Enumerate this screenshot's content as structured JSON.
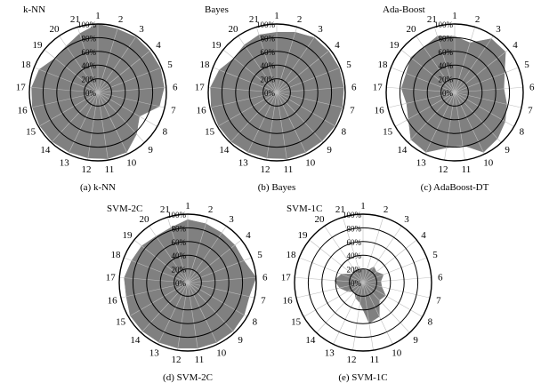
{
  "figure": {
    "panels": [
      {
        "id": "knn",
        "title": "k-NN",
        "caption": "(a) k-NN"
      },
      {
        "id": "bayes",
        "title": "Bayes",
        "caption": "(b) Bayes"
      },
      {
        "id": "ada",
        "title": "Ada-Boost",
        "caption": "(c) AdaBoost-DT"
      },
      {
        "id": "svm2",
        "title": "SVM-2C",
        "caption": "(d) SVM-2C"
      },
      {
        "id": "svm1",
        "title": "SVM-1C",
        "caption": "(e) SVM-1C"
      }
    ]
  },
  "chart_data": [
    {
      "type": "radar",
      "title": "k-NN",
      "categories": [
        "1",
        "2",
        "3",
        "4",
        "5",
        "6",
        "7",
        "8",
        "9",
        "10",
        "11",
        "12",
        "13",
        "14",
        "15",
        "16",
        "17",
        "18",
        "19",
        "20",
        "21"
      ],
      "ticks": [
        "0%",
        "20%",
        "40%",
        "60%",
        "80%",
        "100%"
      ],
      "rlim": [
        0,
        100
      ],
      "grid": true,
      "series": [
        {
          "values": [
            100,
            97,
            98,
            97,
            98,
            97,
            92,
            70,
            83,
            97,
            98,
            97,
            97,
            98,
            98,
            98,
            97,
            92,
            80,
            82,
            90
          ]
        }
      ]
    },
    {
      "type": "radar",
      "title": "Bayes",
      "categories": [
        "1",
        "2",
        "3",
        "4",
        "5",
        "6",
        "7",
        "8",
        "9",
        "10",
        "11",
        "12",
        "13",
        "14",
        "15",
        "16",
        "17",
        "18",
        "19",
        "20",
        "21"
      ],
      "ticks": [
        "0%",
        "20%",
        "40%",
        "60%",
        "80%",
        "100%"
      ],
      "rlim": [
        0,
        100
      ],
      "grid": true,
      "series": [
        {
          "values": [
            88,
            92,
            97,
            97,
            98,
            98,
            98,
            98,
            97,
            97,
            98,
            97,
            97,
            98,
            98,
            98,
            97,
            90,
            80,
            84,
            88
          ]
        }
      ]
    },
    {
      "type": "radar",
      "title": "Ada-Boost",
      "categories": [
        "1",
        "2",
        "3",
        "4",
        "5",
        "6",
        "7",
        "8",
        "9",
        "10",
        "11",
        "12",
        "13",
        "14",
        "15",
        "16",
        "17",
        "18",
        "19",
        "20",
        "21"
      ],
      "ticks": [
        "0%",
        "20%",
        "40%",
        "60%",
        "80%",
        "100%"
      ],
      "rlim": [
        0,
        100
      ],
      "grid": true,
      "series": [
        {
          "values": [
            82,
            76,
            95,
            95,
            78,
            72,
            78,
            85,
            92,
            97,
            78,
            82,
            97,
            94,
            78,
            72,
            78,
            76,
            82,
            80,
            86
          ]
        }
      ]
    },
    {
      "type": "radar",
      "title": "SVM-2C",
      "categories": [
        "1",
        "2",
        "3",
        "4",
        "5",
        "6",
        "7",
        "8",
        "9",
        "10",
        "11",
        "12",
        "13",
        "14",
        "15",
        "16",
        "17",
        "18",
        "19",
        "20",
        "21"
      ],
      "ticks": [
        "0%",
        "20%",
        "40%",
        "60%",
        "80%",
        "100%"
      ],
      "rlim": [
        0,
        100
      ],
      "grid": true,
      "series": [
        {
          "values": [
            92,
            90,
            88,
            88,
            88,
            100,
            92,
            95,
            97,
            97,
            97,
            97,
            97,
            97,
            97,
            92,
            93,
            88,
            86,
            82,
            84
          ]
        }
      ]
    },
    {
      "type": "radar",
      "title": "SVM-1C",
      "categories": [
        "1",
        "2",
        "3",
        "4",
        "5",
        "6",
        "7",
        "8",
        "9",
        "10",
        "11",
        "12",
        "13",
        "14",
        "15",
        "16",
        "17",
        "18",
        "19",
        "20",
        "21"
      ],
      "ticks": [
        "0%",
        "20%",
        "40%",
        "60%",
        "80%",
        "100%"
      ],
      "rlim": [
        0,
        100
      ],
      "grid": true,
      "series": [
        {
          "values": [
            20,
            18,
            28,
            25,
            32,
            26,
            28,
            38,
            35,
            55,
            60,
            30,
            25,
            18,
            26,
            35,
            42,
            34,
            20,
            22,
            18
          ]
        }
      ]
    }
  ]
}
